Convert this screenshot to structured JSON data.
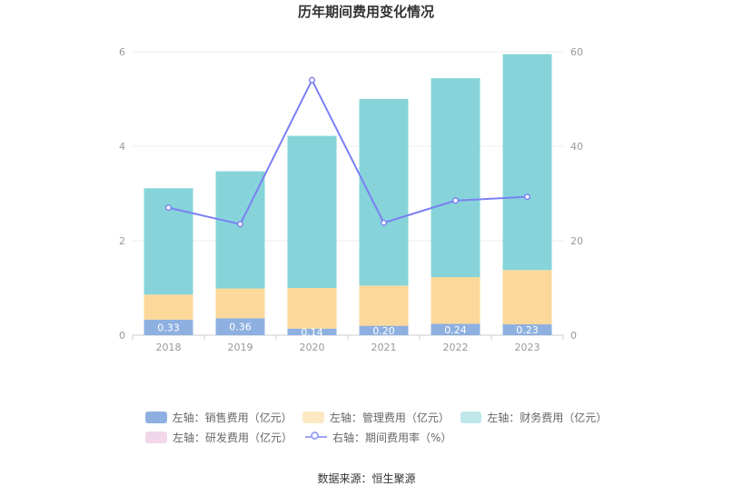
{
  "chart_data": {
    "type": "bar",
    "title": "历年期间费用变化情况",
    "categories": [
      "2018",
      "2019",
      "2020",
      "2021",
      "2022",
      "2023"
    ],
    "stacked": true,
    "ylim_left": [
      0,
      6
    ],
    "yticks_left": [
      0,
      2,
      4,
      6
    ],
    "ylim_right": [
      0,
      60
    ],
    "yticks_right": [
      0,
      20,
      40,
      60
    ],
    "grid": true,
    "legend_position": "bottom",
    "series": [
      {
        "name": "左轴：销售费用（亿元）",
        "axis": "left",
        "kind": "bar",
        "color": "#8eb0e0",
        "values": [
          0.33,
          0.36,
          0.14,
          0.2,
          0.24,
          0.23
        ],
        "labels": [
          "0.33",
          "0.36",
          "0.14",
          "0.20",
          "0.24",
          "0.23"
        ]
      },
      {
        "name": "左轴：管理费用（亿元）",
        "axis": "left",
        "kind": "bar",
        "color": "#fcd89a",
        "values": [
          0.53,
          0.63,
          0.86,
          0.85,
          0.99,
          1.15
        ]
      },
      {
        "name": "左轴：财务费用（亿元）",
        "axis": "left",
        "kind": "bar",
        "color": "#86d4da",
        "values": [
          2.25,
          2.48,
          3.22,
          3.95,
          4.21,
          4.57
        ]
      },
      {
        "name": "左轴：研发费用（亿元）",
        "axis": "left",
        "kind": "bar",
        "color": "#f2d7ea",
        "values": [
          0,
          0,
          0,
          0,
          0,
          0
        ]
      },
      {
        "name": "右轴：期间费用率（%）",
        "axis": "right",
        "kind": "line",
        "color": "#7b80f2",
        "values": [
          27.0,
          23.5,
          54.0,
          23.8,
          28.5,
          29.3
        ]
      }
    ]
  },
  "source": "数据来源：恒生聚源"
}
